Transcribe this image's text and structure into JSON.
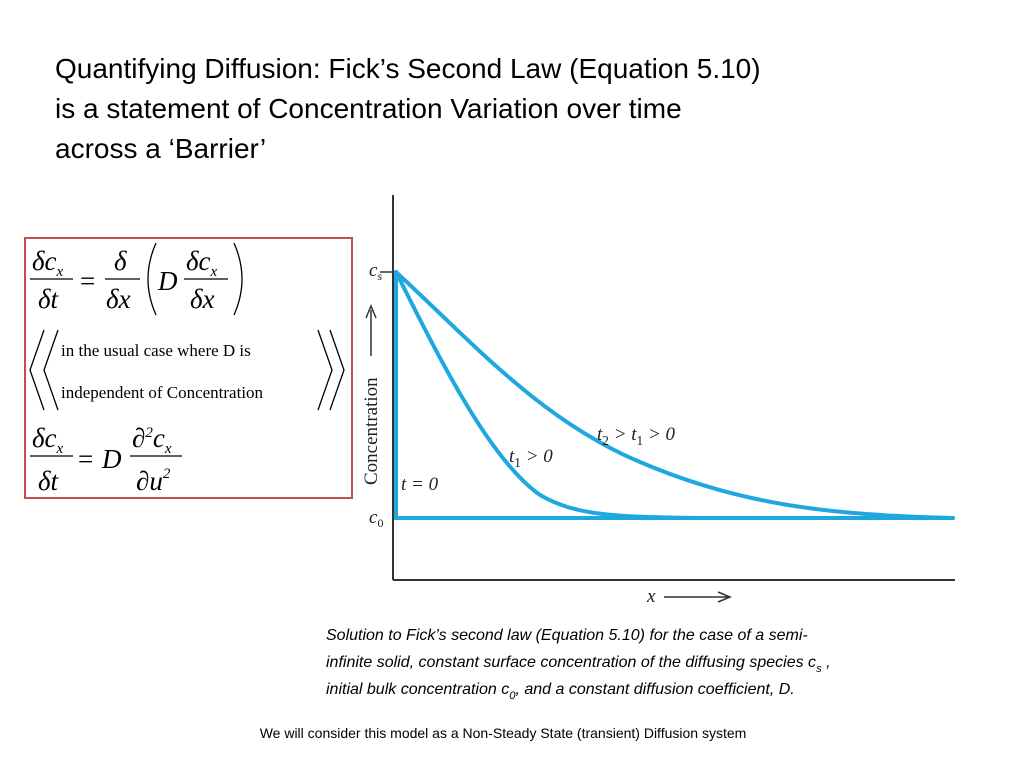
{
  "title": {
    "lines": [
      "Quantifying Diffusion: Fick’s Second Law (Equation 5.10)",
      "is a statement of  Concentration Variation over time",
      "across a ‘Barrier’"
    ]
  },
  "equation_box": {
    "equation1": {
      "lhs_numerator": "δc",
      "lhs_numerator_sub": "x",
      "lhs_denominator": "δt",
      "equals": "=",
      "operator_numerator": "δ",
      "operator_denominator": "δx",
      "coefficient": "D",
      "inner_numerator": "δc",
      "inner_numerator_sub": "x",
      "inner_denominator": "δx"
    },
    "note": {
      "lines": [
        "in the usual case where D is",
        "independent of Concentration"
      ]
    },
    "equation2": {
      "lhs_numerator": "δc",
      "lhs_numerator_sub": "x",
      "lhs_denominator": "δt",
      "equals": "=",
      "coefficient": "D",
      "rhs_numerator": "∂",
      "rhs_numerator_sup": "2",
      "rhs_numerator_var": "c",
      "rhs_numerator_sub": "x",
      "rhs_denominator": "∂u",
      "rhs_denominator_sup": "2"
    }
  },
  "graph": {
    "y_axis_label": "Concentration",
    "x_axis_label": "x",
    "surface_label": {
      "symbol": "c",
      "sub": "s"
    },
    "bulk_label": {
      "symbol": "c",
      "sub": "0"
    },
    "curve_labels": [
      {
        "segments": [
          {
            "text": "t = 0"
          }
        ]
      },
      {
        "segments": [
          {
            "text": "t"
          },
          {
            "sub": "1"
          },
          {
            "text": " > 0"
          }
        ]
      },
      {
        "segments": [
          {
            "text": "t"
          },
          {
            "sub": "2"
          },
          {
            "text": " > t"
          },
          {
            "sub": "1"
          },
          {
            "text": " > 0"
          }
        ]
      }
    ]
  },
  "caption": {
    "lines": [
      {
        "segments": [
          {
            "text": "Solution to Fick’s second law (Equation 5.10) for the case of a semi-"
          }
        ]
      },
      {
        "segments": [
          {
            "text": "infinite solid, constant surface concentration of the diffusing species c"
          },
          {
            "sub": "s"
          },
          {
            "text": " ,"
          }
        ]
      },
      {
        "segments": [
          {
            "text": "initial bulk concentration c"
          },
          {
            "sub": "0"
          },
          {
            "text": ", and a constant diffusion coefficient, D."
          }
        ]
      }
    ]
  },
  "footer": "We will consider this model as a Non-Steady State (transient) Diffusion system"
}
